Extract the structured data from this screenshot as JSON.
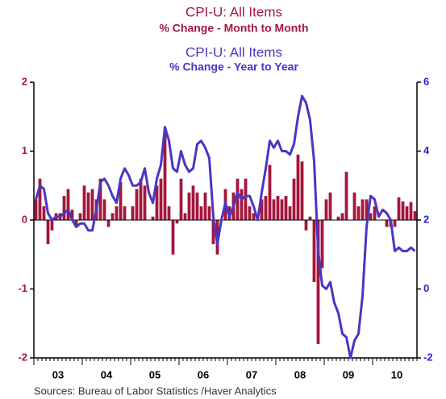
{
  "chart_data": {
    "type": "bar-line",
    "source": "Sources:  Bureau of Labor Statistics /Haver Analytics",
    "x_labels": [
      "03",
      "04",
      "05",
      "06",
      "07",
      "08",
      "09",
      "10"
    ],
    "ylim": [
      -2,
      2
    ],
    "yticks": [
      -2,
      -1,
      0,
      1,
      2
    ],
    "y2lim": [
      -2,
      6
    ],
    "y2ticks": [
      -2,
      0,
      2,
      4,
      6
    ],
    "series": [
      {
        "name": "CPI-U: All Items",
        "label": "% Change - Month to Month",
        "type": "bar",
        "color": "#a3173c",
        "values": [
          0.3,
          0.6,
          0.2,
          -0.35,
          -0.15,
          0.1,
          0.1,
          0.35,
          0.45,
          0.15,
          -0.1,
          0.1,
          0.5,
          0.4,
          0.45,
          0.3,
          0.6,
          0.3,
          -0.1,
          0.1,
          0.2,
          0.55,
          0.2,
          0.0,
          0.2,
          0.45,
          0.6,
          0.5,
          0.0,
          0.05,
          0.5,
          0.6,
          1.3,
          0.2,
          -0.5,
          -0.05,
          0.6,
          0.1,
          0.4,
          0.5,
          0.4,
          0.2,
          0.4,
          0.2,
          -0.35,
          -0.5,
          0.0,
          0.45,
          0.2,
          0.4,
          0.6,
          0.45,
          0.6,
          0.2,
          0.1,
          0.0,
          0.3,
          0.35,
          0.8,
          0.3,
          0.35,
          0.3,
          0.35,
          0.2,
          0.6,
          0.95,
          0.85,
          -0.15,
          0.05,
          -0.9,
          -1.8,
          -0.7,
          0.3,
          0.4,
          0.0,
          0.05,
          0.1,
          0.7,
          0.0,
          0.4,
          0.2,
          0.3,
          0.3,
          0.1,
          0.2,
          0.0,
          0.0,
          -0.1,
          -0.1,
          -0.1,
          0.33,
          0.27,
          0.2,
          0.26,
          0.13
        ]
      },
      {
        "name": "CPI-U: All Items",
        "label": "% Change - Year to Year",
        "type": "line",
        "color": "#4b35c4",
        "axis": "y2",
        "values": [
          2.6,
          3.0,
          2.9,
          2.2,
          2.0,
          2.1,
          2.1,
          2.2,
          2.3,
          2.0,
          1.8,
          1.9,
          1.9,
          1.7,
          1.7,
          2.3,
          3.1,
          3.2,
          3.0,
          2.7,
          2.5,
          3.2,
          3.5,
          3.3,
          3.0,
          3.0,
          3.1,
          3.5,
          2.8,
          2.5,
          3.2,
          3.6,
          4.7,
          4.3,
          3.5,
          3.4,
          4.0,
          3.6,
          3.4,
          3.5,
          4.2,
          4.3,
          4.1,
          3.8,
          2.1,
          1.3,
          2.0,
          2.5,
          2.1,
          2.4,
          2.8,
          2.6,
          2.7,
          2.7,
          2.4,
          2.0,
          2.8,
          3.5,
          4.3,
          4.1,
          4.3,
          4.0,
          4.0,
          3.9,
          4.2,
          5.0,
          5.6,
          5.4,
          4.9,
          3.7,
          1.1,
          0.1,
          0.0,
          0.2,
          -0.4,
          -0.7,
          -1.3,
          -1.4,
          -2.0,
          -1.5,
          -1.3,
          -0.2,
          1.8,
          2.7,
          2.6,
          2.1,
          2.3,
          2.2,
          2.0,
          1.1,
          1.2,
          1.1,
          1.1,
          1.2,
          1.1
        ]
      }
    ]
  }
}
